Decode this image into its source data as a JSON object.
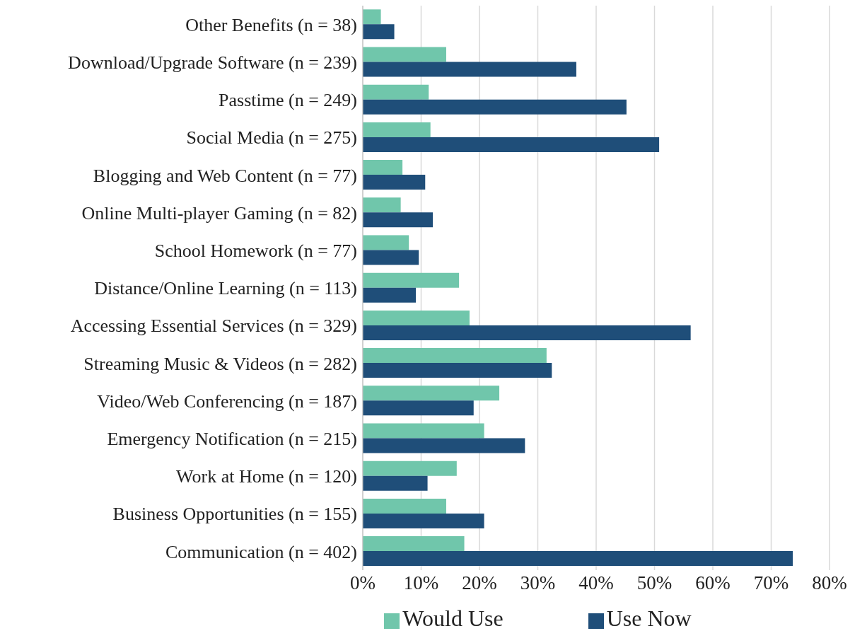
{
  "chart_data": {
    "type": "bar",
    "orientation": "horizontal",
    "categories": [
      "Other Benefits (n = 38)",
      "Download/Upgrade Software (n = 239)",
      "Passtime (n = 249)",
      "Social Media (n = 275)",
      "Blogging and Web Content (n = 77)",
      "Online Multi-player Gaming (n = 82)",
      "School Homework (n = 77)",
      "Distance/Online Learning (n = 113)",
      "Accessing Essential Services (n = 329)",
      "Streaming Music & Videos (n = 282)",
      "Video/Web Conferencing (n = 187)",
      "Emergency Notification (n = 215)",
      "Work at Home (n = 120)",
      "Business Opportunities (n = 155)",
      "Communication (n = 402)"
    ],
    "series": [
      {
        "name": "Would Use",
        "color": "#70c6ab",
        "values": [
          3.1,
          14.3,
          11.3,
          11.6,
          6.8,
          6.5,
          7.9,
          16.5,
          18.3,
          31.5,
          23.4,
          20.8,
          16.1,
          14.3,
          17.4
        ]
      },
      {
        "name": "Use Now",
        "color": "#1f4e79",
        "values": [
          5.4,
          36.6,
          45.2,
          50.8,
          10.7,
          12.0,
          9.6,
          9.1,
          56.2,
          32.4,
          19.0,
          27.8,
          11.1,
          20.8,
          73.7
        ]
      }
    ],
    "xlim": [
      0,
      80
    ],
    "xticks": [
      {
        "value": 0,
        "label": "0%"
      },
      {
        "value": 10,
        "label": "10%"
      },
      {
        "value": 20,
        "label": "20%"
      },
      {
        "value": 30,
        "label": "30%"
      },
      {
        "value": 40,
        "label": "40%"
      },
      {
        "value": 50,
        "label": "50%"
      },
      {
        "value": 60,
        "label": "60%"
      },
      {
        "value": 70,
        "label": "70%"
      },
      {
        "value": 80,
        "label": "80%"
      }
    ],
    "grid": "x",
    "legend": "bottom"
  }
}
